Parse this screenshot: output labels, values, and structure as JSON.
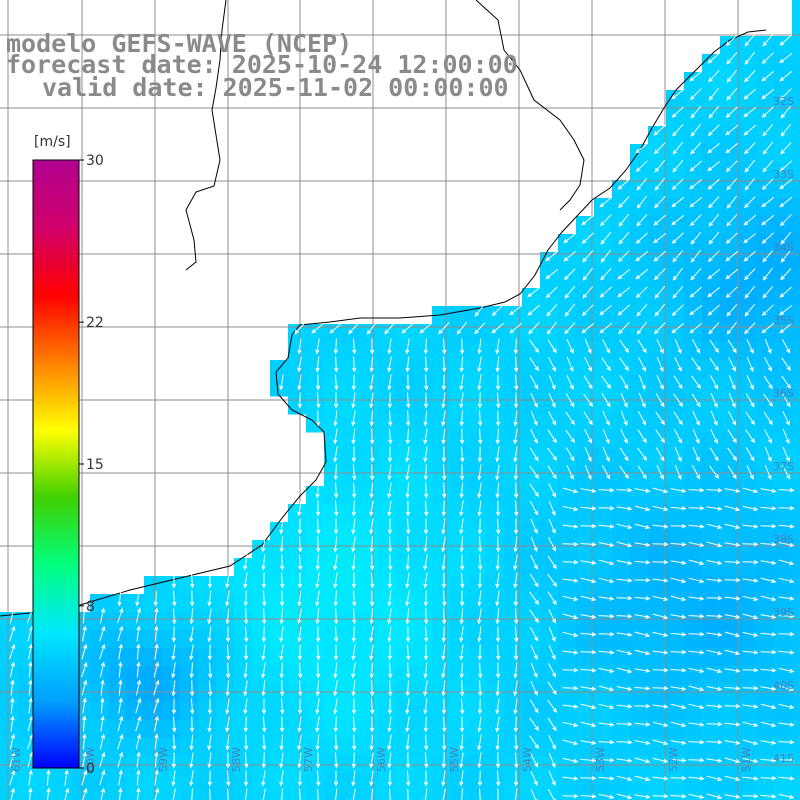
{
  "title": {
    "line1": "modelo GEFS-WAVE (NCEP)",
    "line2": "forecast date: 2025-10-24 12:00:00",
    "line3": "valid date: 2025-11-02 00:00:00"
  },
  "colorbar": {
    "unit": "[m/s]",
    "range": [
      0,
      30
    ],
    "ticks": [
      {
        "value": 30,
        "label": "30"
      },
      {
        "value": 22,
        "label": "22"
      },
      {
        "value": 15,
        "label": "15"
      },
      {
        "value": 8,
        "label": "8"
      },
      {
        "value": 0,
        "label": "0"
      }
    ],
    "colors": [
      "#0000ff",
      "#00a0ff",
      "#00e8ff",
      "#00ff80",
      "#40d000",
      "#ffff00",
      "#ff8000",
      "#ff0000",
      "#d0006a",
      "#b00090"
    ]
  },
  "map": {
    "variable": "wind speed and direction",
    "lon_range": [
      -61,
      -50.5
    ],
    "lat_range": [
      -41.5,
      -30.5
    ],
    "lat_labels": [
      "32S",
      "33S",
      "34S",
      "35S",
      "36S",
      "37S",
      "38S",
      "39S",
      "40S",
      "41S"
    ],
    "lon_labels": [
      "61W",
      "60W",
      "59W",
      "58W",
      "57W",
      "56W",
      "55W",
      "54W",
      "53W",
      "52W",
      "51W"
    ],
    "land_color": "#ffffff",
    "grid_color": "#8c8c8c",
    "arrow_color": "#ffffff"
  }
}
